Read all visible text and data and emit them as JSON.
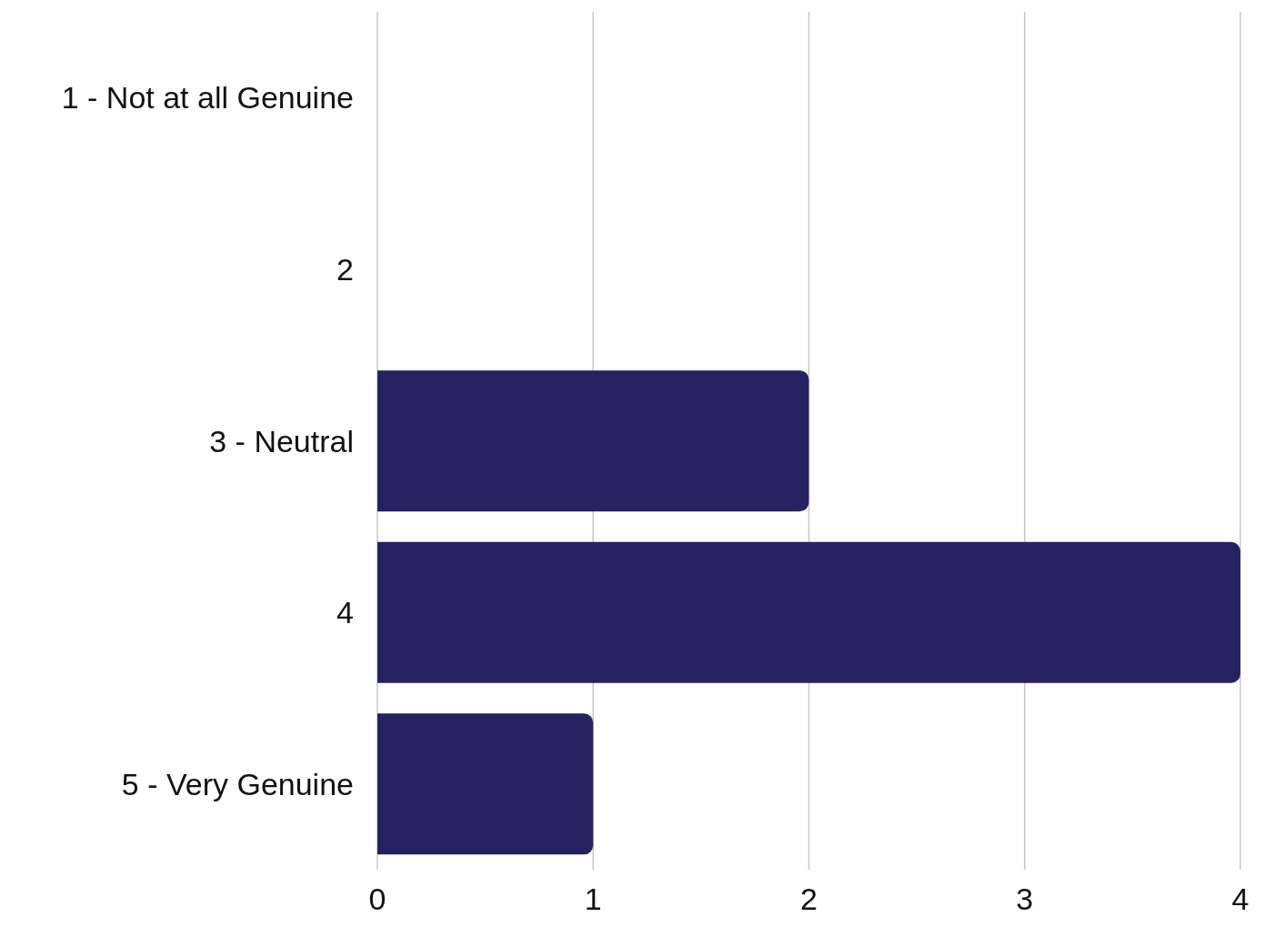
{
  "chart_data": {
    "type": "bar",
    "orientation": "horizontal",
    "categories": [
      "1 - Not at all Genuine",
      "2",
      "3 - Neutral",
      "4",
      "5 - Very Genuine"
    ],
    "values": [
      0,
      0,
      2,
      4,
      1
    ],
    "color": "#262262",
    "xlim": [
      0,
      4
    ],
    "xticks": [
      0,
      1,
      2,
      3,
      4
    ],
    "grid": "x"
  }
}
